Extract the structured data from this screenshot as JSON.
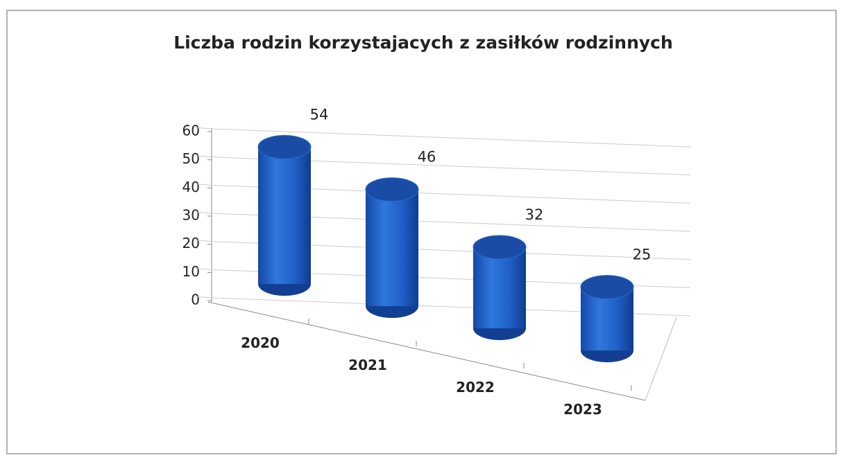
{
  "chart_data": {
    "type": "bar",
    "title": "Liczba rodzin korzystajacych z zasiłków rodzinnych",
    "categories": [
      "2020",
      "2021",
      "2022",
      "2023"
    ],
    "values": [
      54,
      46,
      32,
      25
    ],
    "color": "#1f5fc4",
    "ylim": [
      0,
      60
    ],
    "yticks": [
      0,
      10,
      20,
      30,
      40,
      50,
      60
    ],
    "grid": true
  }
}
